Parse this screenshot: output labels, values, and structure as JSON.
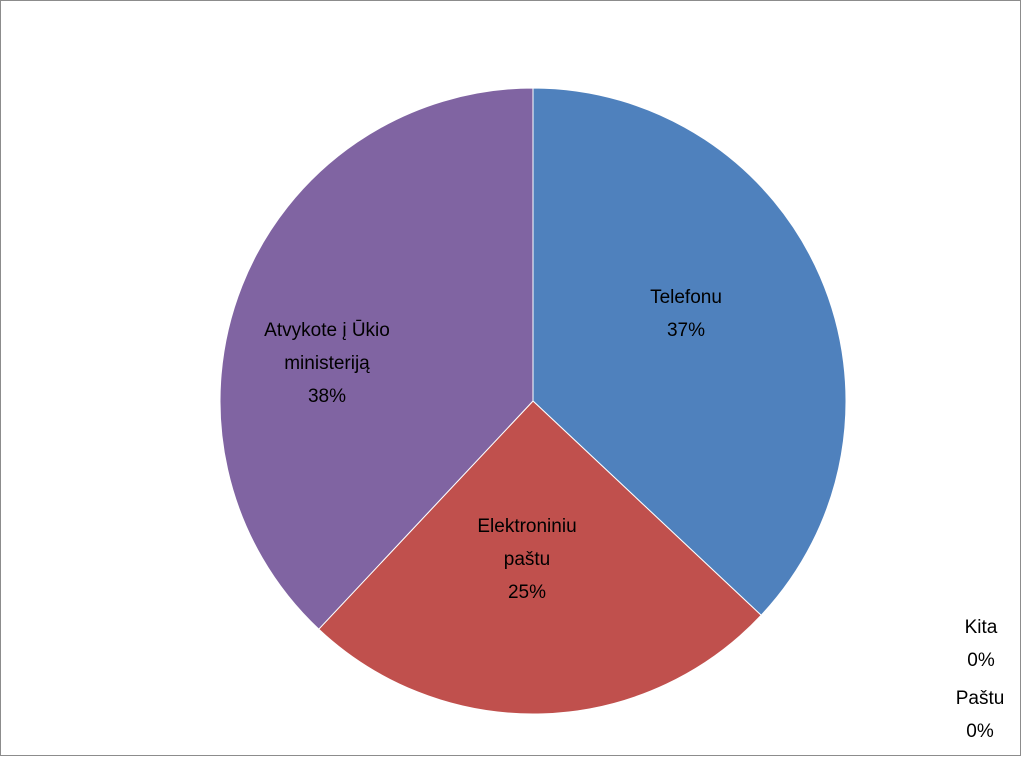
{
  "chart_data": {
    "type": "pie",
    "slices": [
      {
        "label": [
          "Telefonu"
        ],
        "value": 37,
        "pct_label": "37%",
        "color": "#4F81BD"
      },
      {
        "label": [
          "Elektroniniu",
          "paštu"
        ],
        "value": 25,
        "pct_label": "25%",
        "color": "#C0504D"
      },
      {
        "label": [
          "Atvykote į Ūkio",
          "ministeriją"
        ],
        "value": 38,
        "pct_label": "38%",
        "color": "#8064A2"
      },
      {
        "label": [
          "Kita"
        ],
        "value": 0,
        "pct_label": "0%",
        "color": "#9BBB59"
      },
      {
        "label": [
          "Paštu"
        ],
        "value": 0,
        "pct_label": "0%",
        "color": "#F79646"
      }
    ]
  }
}
